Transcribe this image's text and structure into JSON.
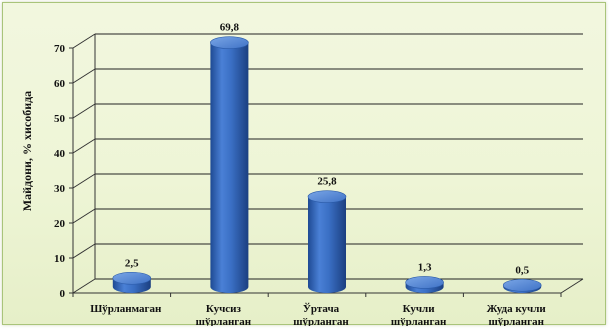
{
  "chart_data": {
    "type": "bar",
    "title": "",
    "xlabel": "",
    "ylabel": "Майдони, % хисобида",
    "categories": [
      [
        "Шўрланмаган"
      ],
      [
        "Кучсиз",
        "шўрланган"
      ],
      [
        "Ўртача",
        "шўрланган"
      ],
      [
        "Кучли",
        "шўрланган"
      ],
      [
        "Жуда кучли",
        "шўрланган"
      ]
    ],
    "values": [
      2.5,
      69.8,
      25.8,
      1.3,
      0.5
    ],
    "data_labels": [
      "2,5",
      "69,8",
      "25,8",
      "1,3",
      "0,5"
    ],
    "ylim": [
      0,
      70
    ],
    "yticks": [
      0,
      10,
      20,
      30,
      40,
      50,
      60,
      70
    ],
    "grid": true,
    "shape": "3d-cylinder",
    "colors": {
      "bar": "#3a6fc4",
      "bar_dark": "#1f4a92",
      "bar_top": "#5b8fdc",
      "grid": "#222222",
      "background": "#eef5d6"
    }
  }
}
